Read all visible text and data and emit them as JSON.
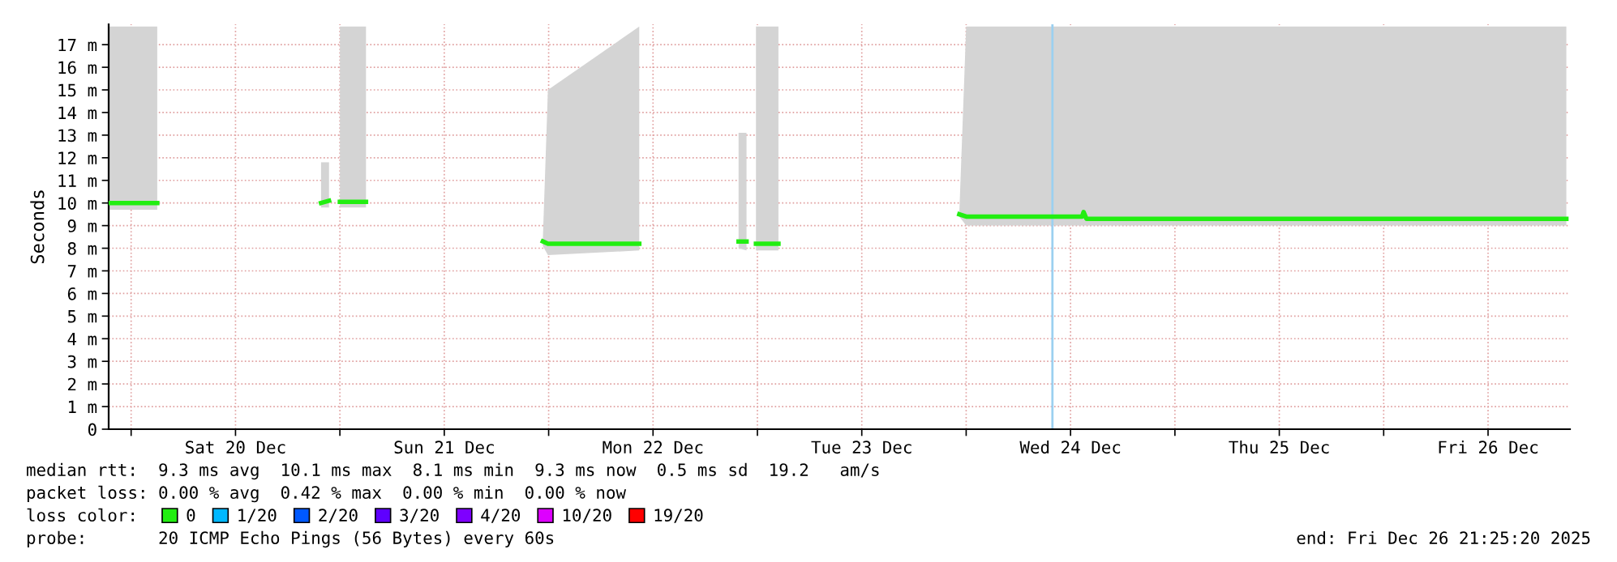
{
  "chart_data": {
    "type": "line",
    "ylabel": "Seconds",
    "x": [
      "2025-12-19T21:25",
      "2025-12-20T03:00",
      "2025-12-20T03:10",
      "2025-12-20T21:50",
      "2025-12-20T22:45",
      "2025-12-20T23:05",
      "2025-12-21T00:00",
      "2025-12-21T03:00",
      "2025-12-21T03:10",
      "2025-12-21T23:20",
      "2025-12-21T23:55",
      "2025-12-22T10:25",
      "2025-12-22T10:35",
      "2025-12-22T21:50",
      "2025-12-22T22:45",
      "2025-12-22T23:05",
      "2025-12-22T23:50",
      "2025-12-23T02:25",
      "2025-12-23T02:35",
      "2025-12-23T23:13",
      "2025-12-24T00:00",
      "2025-12-24T13:20",
      "2025-12-24T13:30",
      "2025-12-24T13:50",
      "2025-12-26T21:00"
    ],
    "series": [
      {
        "name": "0",
        "color": "#22ee11",
        "values": [
          10.0,
          10.0,
          null,
          10.0,
          10.1,
          null,
          10.05,
          10.05,
          null,
          8.3,
          8.2,
          8.2,
          null,
          8.3,
          8.3,
          null,
          8.2,
          8.2,
          null,
          9.5,
          9.4,
          9.4,
          9.6,
          9.3,
          9.3
        ],
        "lower": [
          9.7,
          9.7,
          null,
          9.8,
          9.8,
          null,
          9.8,
          9.8,
          null,
          8.1,
          7.7,
          7.9,
          null,
          8.0,
          7.9,
          null,
          7.9,
          7.9,
          null,
          9.4,
          9.0,
          9.0,
          9.0,
          9.0,
          9.0
        ],
        "upper": [
          17.8,
          17.8,
          null,
          11.8,
          11.8,
          null,
          17.8,
          17.8,
          null,
          8.4,
          15.0,
          17.8,
          null,
          13.1,
          13.1,
          null,
          17.8,
          17.8,
          null,
          9.6,
          17.8,
          17.8,
          17.8,
          17.8,
          17.8
        ]
      },
      {
        "name": "1/20",
        "color": "#00b8ff",
        "values": [
          null,
          null,
          null,
          null,
          null,
          null,
          null,
          null,
          null,
          null,
          null,
          null,
          null,
          null,
          null,
          null,
          null,
          null,
          null,
          null,
          null,
          null,
          null,
          null,
          null
        ]
      },
      {
        "name": "2/20",
        "color": "#0059ff",
        "values": [
          null,
          null,
          null,
          null,
          null,
          null,
          null,
          null,
          null,
          null,
          null,
          null,
          null,
          null,
          null,
          null,
          null,
          null,
          null,
          null,
          null,
          null,
          null,
          null,
          null
        ]
      },
      {
        "name": "3/20",
        "color": "#5e00ff",
        "values": [
          null,
          null,
          null,
          null,
          null,
          null,
          null,
          null,
          null,
          null,
          null,
          null,
          null,
          null,
          null,
          null,
          null,
          null,
          null,
          null,
          null,
          null,
          null,
          null,
          null
        ]
      },
      {
        "name": "4/20",
        "color": "#7e00ff",
        "values": [
          null,
          null,
          null,
          null,
          null,
          null,
          null,
          null,
          null,
          null,
          null,
          null,
          null,
          null,
          null,
          null,
          null,
          null,
          null,
          null,
          null,
          null,
          null,
          null,
          null
        ]
      },
      {
        "name": "10/20",
        "color": "#dd00ff",
        "values": [
          null,
          null,
          null,
          null,
          null,
          null,
          null,
          null,
          null,
          null,
          null,
          null,
          null,
          null,
          null,
          null,
          null,
          null,
          null,
          null,
          null,
          null,
          null,
          null,
          null
        ]
      },
      {
        "name": "19/20",
        "color": "#ff0000",
        "values": [
          null,
          null,
          null,
          null,
          null,
          null,
          null,
          null,
          null,
          null,
          null,
          null,
          null,
          null,
          null,
          null,
          null,
          null,
          null,
          null,
          null,
          null,
          null,
          null,
          null
        ]
      }
    ],
    "legend": "bottom",
    "legend_title": "loss color:",
    "xlim": [
      "2025-12-19T21:25",
      "2025-12-26T21:25"
    ],
    "xticks": [
      {
        "value": "2025-12-20T00:00",
        "label": null
      },
      {
        "value": "2025-12-20T12:00",
        "label": "Sat 20 Dec"
      },
      {
        "value": "2025-12-21T00:00",
        "label": null
      },
      {
        "value": "2025-12-21T12:00",
        "label": "Sun 21 Dec"
      },
      {
        "value": "2025-12-22T00:00",
        "label": null
      },
      {
        "value": "2025-12-22T12:00",
        "label": "Mon 22 Dec"
      },
      {
        "value": "2025-12-23T00:00",
        "label": null
      },
      {
        "value": "2025-12-23T12:00",
        "label": "Tue 23 Dec"
      },
      {
        "value": "2025-12-24T00:00",
        "label": null
      },
      {
        "value": "2025-12-24T12:00",
        "label": "Wed 24 Dec"
      },
      {
        "value": "2025-12-25T00:00",
        "label": null
      },
      {
        "value": "2025-12-25T12:00",
        "label": "Thu 25 Dec"
      },
      {
        "value": "2025-12-26T00:00",
        "label": null
      },
      {
        "value": "2025-12-26T12:00",
        "label": "Fri 26 Dec"
      }
    ],
    "ylim": [
      0,
      17.9
    ],
    "yticks": [
      0,
      {
        "value": 1,
        "label": "1 m"
      },
      {
        "value": 2,
        "label": "2 m"
      },
      {
        "value": 3,
        "label": "3 m"
      },
      {
        "value": 4,
        "label": "4 m"
      },
      {
        "value": 5,
        "label": "5 m"
      },
      {
        "value": 6,
        "label": "6 m"
      },
      {
        "value": 7,
        "label": "7 m"
      },
      {
        "value": 8,
        "label": "8 m"
      },
      {
        "value": 9,
        "label": "9 m"
      },
      {
        "value": 10,
        "label": "10 m"
      },
      {
        "value": 11,
        "label": "11 m"
      },
      {
        "value": 12,
        "label": "12 m"
      },
      {
        "value": 13,
        "label": "13 m"
      },
      {
        "value": 14,
        "label": "14 m"
      },
      {
        "value": 15,
        "label": "15 m"
      },
      {
        "value": 16,
        "label": "16 m"
      },
      {
        "value": 17,
        "label": "17 m"
      }
    ],
    "grid": true,
    "ref_lines": [
      {
        "axis": "x",
        "value": "2025-12-24T09:55",
        "color": "#9cd0f0"
      }
    ],
    "annotations": [
      "median rtt:  9.3 ms avg  10.1 ms max  8.1 ms min  9.3 ms now  0.5 ms sd  19.2   am/s",
      "packet loss: 0.00 % avg  0.42 % max  0.00 % min  0.00 % now",
      "probe:       20 ICMP Echo Pings (56 Bytes) every 60s",
      "end: Fri Dec 26 21:25:20 2025"
    ]
  }
}
